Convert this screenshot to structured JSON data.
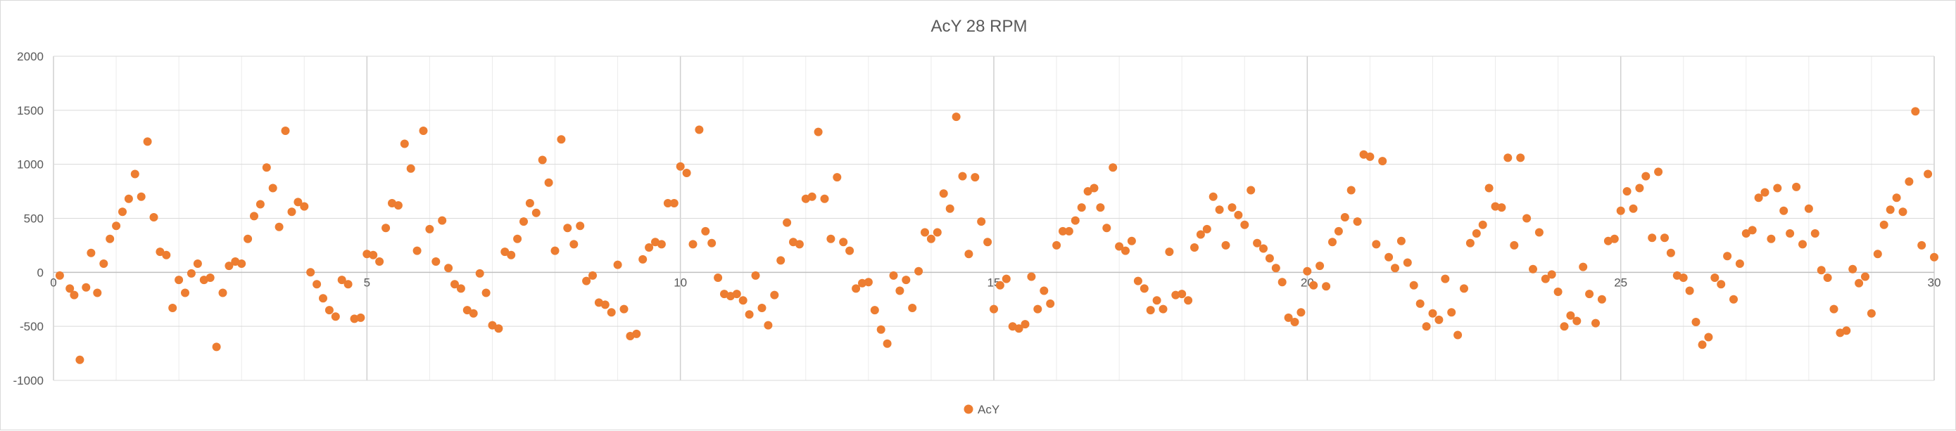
{
  "chart_data": {
    "type": "scatter",
    "title": "AcY 28 RPM",
    "xlabel": "",
    "ylabel": "",
    "xlim": [
      0,
      30
    ],
    "ylim": [
      -1000,
      2000
    ],
    "x_ticks": [
      0,
      5,
      10,
      15,
      20,
      25,
      30
    ],
    "y_ticks": [
      -1000,
      -500,
      0,
      500,
      1000,
      1500,
      2000
    ],
    "x_minor_step": 1,
    "grid": true,
    "legend_position": "bottom",
    "marker_color": "#ED7D31",
    "series": [
      {
        "name": "AcY",
        "points": [
          [
            0.1,
            -30
          ],
          [
            0.26,
            -150
          ],
          [
            0.33,
            -210
          ],
          [
            0.42,
            -810
          ],
          [
            0.52,
            -140
          ],
          [
            0.6,
            180
          ],
          [
            0.7,
            -190
          ],
          [
            0.8,
            80
          ],
          [
            0.9,
            310
          ],
          [
            1.0,
            430
          ],
          [
            1.1,
            560
          ],
          [
            1.2,
            680
          ],
          [
            1.3,
            910
          ],
          [
            1.4,
            700
          ],
          [
            1.5,
            1210
          ],
          [
            1.6,
            510
          ],
          [
            1.7,
            190
          ],
          [
            1.8,
            160
          ],
          [
            1.9,
            -330
          ],
          [
            2.0,
            -70
          ],
          [
            2.1,
            -190
          ],
          [
            2.2,
            -10
          ],
          [
            2.3,
            80
          ],
          [
            2.4,
            -70
          ],
          [
            2.5,
            -50
          ],
          [
            2.6,
            -690
          ],
          [
            2.7,
            -190
          ],
          [
            2.8,
            60
          ],
          [
            2.9,
            100
          ],
          [
            3.0,
            80
          ],
          [
            3.1,
            310
          ],
          [
            3.2,
            520
          ],
          [
            3.3,
            630
          ],
          [
            3.4,
            970
          ],
          [
            3.5,
            780
          ],
          [
            3.6,
            420
          ],
          [
            3.7,
            1310
          ],
          [
            3.8,
            560
          ],
          [
            3.9,
            650
          ],
          [
            4.0,
            610
          ],
          [
            4.1,
            0
          ],
          [
            4.2,
            -110
          ],
          [
            4.3,
            -240
          ],
          [
            4.4,
            -350
          ],
          [
            4.5,
            -410
          ],
          [
            4.6,
            -70
          ],
          [
            4.7,
            -110
          ],
          [
            4.8,
            -430
          ],
          [
            4.9,
            -420
          ],
          [
            5.0,
            170
          ],
          [
            5.1,
            160
          ],
          [
            5.2,
            100
          ],
          [
            5.3,
            410
          ],
          [
            5.4,
            640
          ],
          [
            5.5,
            620
          ],
          [
            5.6,
            1190
          ],
          [
            5.7,
            960
          ],
          [
            5.8,
            200
          ],
          [
            5.9,
            1310
          ],
          [
            6.0,
            400
          ],
          [
            6.1,
            100
          ],
          [
            6.2,
            480
          ],
          [
            6.3,
            40
          ],
          [
            6.4,
            -110
          ],
          [
            6.5,
            -150
          ],
          [
            6.6,
            -350
          ],
          [
            6.7,
            -380
          ],
          [
            6.8,
            -10
          ],
          [
            6.9,
            -190
          ],
          [
            7.0,
            -490
          ],
          [
            7.1,
            -520
          ],
          [
            7.2,
            190
          ],
          [
            7.3,
            160
          ],
          [
            7.4,
            310
          ],
          [
            7.5,
            470
          ],
          [
            7.6,
            640
          ],
          [
            7.7,
            550
          ],
          [
            7.8,
            1040
          ],
          [
            7.9,
            830
          ],
          [
            8.0,
            200
          ],
          [
            8.1,
            1230
          ],
          [
            8.2,
            410
          ],
          [
            8.3,
            260
          ],
          [
            8.4,
            430
          ],
          [
            8.5,
            -80
          ],
          [
            8.6,
            -30
          ],
          [
            8.7,
            -280
          ],
          [
            8.8,
            -300
          ],
          [
            8.9,
            -370
          ],
          [
            9.0,
            70
          ],
          [
            9.1,
            -340
          ],
          [
            9.2,
            -590
          ],
          [
            9.3,
            -570
          ],
          [
            9.4,
            120
          ],
          [
            9.5,
            230
          ],
          [
            9.6,
            280
          ],
          [
            9.7,
            260
          ],
          [
            9.8,
            640
          ],
          [
            9.9,
            640
          ],
          [
            10.0,
            980
          ],
          [
            10.1,
            920
          ],
          [
            10.2,
            260
          ],
          [
            10.3,
            1320
          ],
          [
            10.4,
            380
          ],
          [
            10.5,
            270
          ],
          [
            10.6,
            -50
          ],
          [
            10.7,
            -200
          ],
          [
            10.8,
            -220
          ],
          [
            10.9,
            -200
          ],
          [
            11.0,
            -260
          ],
          [
            11.1,
            -390
          ],
          [
            11.2,
            -30
          ],
          [
            11.3,
            -330
          ],
          [
            11.4,
            -490
          ],
          [
            11.5,
            -210
          ],
          [
            11.6,
            110
          ],
          [
            11.7,
            460
          ],
          [
            11.8,
            280
          ],
          [
            11.9,
            260
          ],
          [
            12.0,
            680
          ],
          [
            12.1,
            700
          ],
          [
            12.2,
            1300
          ],
          [
            12.3,
            680
          ],
          [
            12.4,
            310
          ],
          [
            12.5,
            880
          ],
          [
            12.6,
            280
          ],
          [
            12.7,
            200
          ],
          [
            12.8,
            -150
          ],
          [
            12.9,
            -100
          ],
          [
            13.0,
            -90
          ],
          [
            13.1,
            -350
          ],
          [
            13.2,
            -530
          ],
          [
            13.3,
            -660
          ],
          [
            13.4,
            -30
          ],
          [
            13.5,
            -170
          ],
          [
            13.6,
            -70
          ],
          [
            13.7,
            -330
          ],
          [
            13.8,
            10
          ],
          [
            13.9,
            370
          ],
          [
            14.0,
            310
          ],
          [
            14.1,
            370
          ],
          [
            14.2,
            730
          ],
          [
            14.3,
            590
          ],
          [
            14.4,
            1440
          ],
          [
            14.5,
            890
          ],
          [
            14.6,
            170
          ],
          [
            14.7,
            880
          ],
          [
            14.8,
            470
          ],
          [
            14.9,
            280
          ],
          [
            15.0,
            -340
          ],
          [
            15.1,
            -120
          ],
          [
            15.2,
            -60
          ],
          [
            15.3,
            -500
          ],
          [
            15.4,
            -520
          ],
          [
            15.5,
            -480
          ],
          [
            15.6,
            -40
          ],
          [
            15.7,
            -340
          ],
          [
            15.8,
            -170
          ],
          [
            15.9,
            -290
          ],
          [
            16.0,
            250
          ],
          [
            16.1,
            380
          ],
          [
            16.2,
            380
          ],
          [
            16.3,
            480
          ],
          [
            16.4,
            600
          ],
          [
            16.5,
            750
          ],
          [
            16.6,
            780
          ],
          [
            16.7,
            600
          ],
          [
            16.8,
            410
          ],
          [
            16.9,
            970
          ],
          [
            17.0,
            240
          ],
          [
            17.1,
            200
          ],
          [
            17.2,
            290
          ],
          [
            17.3,
            -80
          ],
          [
            17.4,
            -150
          ],
          [
            17.5,
            -350
          ],
          [
            17.6,
            -260
          ],
          [
            17.7,
            -340
          ],
          [
            17.8,
            190
          ],
          [
            17.9,
            -210
          ],
          [
            18.0,
            -200
          ],
          [
            18.1,
            -260
          ],
          [
            18.2,
            230
          ],
          [
            18.3,
            350
          ],
          [
            18.4,
            400
          ],
          [
            18.5,
            700
          ],
          [
            18.6,
            580
          ],
          [
            18.7,
            250
          ],
          [
            18.8,
            600
          ],
          [
            18.9,
            530
          ],
          [
            19.0,
            440
          ],
          [
            19.1,
            760
          ],
          [
            19.2,
            270
          ],
          [
            19.3,
            220
          ],
          [
            19.4,
            130
          ],
          [
            19.5,
            40
          ],
          [
            19.6,
            -90
          ],
          [
            19.7,
            -420
          ],
          [
            19.8,
            -460
          ],
          [
            19.9,
            -370
          ],
          [
            20.0,
            10
          ],
          [
            20.1,
            -120
          ],
          [
            20.2,
            60
          ],
          [
            20.3,
            -130
          ],
          [
            20.4,
            280
          ],
          [
            20.5,
            380
          ],
          [
            20.6,
            510
          ],
          [
            20.7,
            760
          ],
          [
            20.8,
            470
          ],
          [
            20.9,
            1090
          ],
          [
            21.0,
            1070
          ],
          [
            21.1,
            260
          ],
          [
            21.2,
            1030
          ],
          [
            21.3,
            140
          ],
          [
            21.4,
            40
          ],
          [
            21.5,
            290
          ],
          [
            21.6,
            90
          ],
          [
            21.7,
            -120
          ],
          [
            21.8,
            -290
          ],
          [
            21.9,
            -500
          ],
          [
            22.0,
            -380
          ],
          [
            22.1,
            -440
          ],
          [
            22.2,
            -60
          ],
          [
            22.3,
            -370
          ],
          [
            22.4,
            -580
          ],
          [
            22.5,
            -150
          ],
          [
            22.6,
            270
          ],
          [
            22.7,
            360
          ],
          [
            22.8,
            440
          ],
          [
            22.9,
            780
          ],
          [
            23.0,
            610
          ],
          [
            23.1,
            600
          ],
          [
            23.2,
            1060
          ],
          [
            23.3,
            250
          ],
          [
            23.4,
            1060
          ],
          [
            23.5,
            500
          ],
          [
            23.6,
            30
          ],
          [
            23.7,
            370
          ],
          [
            23.8,
            -60
          ],
          [
            23.9,
            -20
          ],
          [
            24.0,
            -180
          ],
          [
            24.1,
            -500
          ],
          [
            24.2,
            -400
          ],
          [
            24.3,
            -450
          ],
          [
            24.4,
            50
          ],
          [
            24.5,
            -200
          ],
          [
            24.6,
            -470
          ],
          [
            24.7,
            -250
          ],
          [
            24.8,
            290
          ],
          [
            24.9,
            310
          ],
          [
            25.0,
            570
          ],
          [
            25.1,
            750
          ],
          [
            25.2,
            590
          ],
          [
            25.3,
            780
          ],
          [
            25.4,
            890
          ],
          [
            25.5,
            320
          ],
          [
            25.6,
            930
          ],
          [
            25.7,
            320
          ],
          [
            25.8,
            180
          ],
          [
            25.9,
            -30
          ],
          [
            26.0,
            -50
          ],
          [
            26.1,
            -170
          ],
          [
            26.2,
            -460
          ],
          [
            26.3,
            -670
          ],
          [
            26.4,
            -600
          ],
          [
            26.5,
            -50
          ],
          [
            26.6,
            -110
          ],
          [
            26.7,
            150
          ],
          [
            26.8,
            -250
          ],
          [
            26.9,
            80
          ],
          [
            27.0,
            360
          ],
          [
            27.1,
            390
          ],
          [
            27.2,
            690
          ],
          [
            27.3,
            740
          ],
          [
            27.4,
            310
          ],
          [
            27.5,
            780
          ],
          [
            27.6,
            570
          ],
          [
            27.7,
            360
          ],
          [
            27.8,
            790
          ],
          [
            27.9,
            260
          ],
          [
            28.0,
            590
          ],
          [
            28.1,
            360
          ],
          [
            28.2,
            20
          ],
          [
            28.3,
            -50
          ],
          [
            28.4,
            -340
          ],
          [
            28.5,
            -560
          ],
          [
            28.6,
            -540
          ],
          [
            28.7,
            30
          ],
          [
            28.8,
            -100
          ],
          [
            28.9,
            -40
          ],
          [
            29.0,
            -380
          ],
          [
            29.1,
            170
          ],
          [
            29.2,
            440
          ],
          [
            29.3,
            580
          ],
          [
            29.4,
            690
          ],
          [
            29.5,
            560
          ],
          [
            29.6,
            840
          ],
          [
            29.7,
            1490
          ],
          [
            29.8,
            250
          ],
          [
            29.9,
            910
          ],
          [
            30.0,
            140
          ]
        ]
      }
    ]
  }
}
